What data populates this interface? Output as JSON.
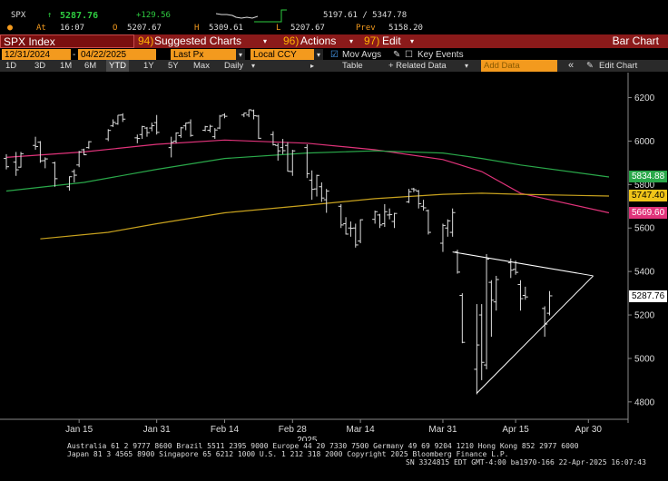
{
  "quote": {
    "ticker": "SPX",
    "arrow": "↑",
    "last": "5287.76",
    "change": "+129.56",
    "at_label": "At",
    "time": "16:07",
    "open_label": "O",
    "open": "5207.67",
    "high_label": "H",
    "high": "5309.61",
    "low_label": "L",
    "low": "5207.67",
    "range": "5197.61  /  5347.78",
    "prev_label": "Prev",
    "prev": "5158.20"
  },
  "title_bar": {
    "security": "SPX Index",
    "suggested_num": "94)",
    "suggested": "Suggested Charts",
    "actions_num": "96)",
    "actions": "Actions",
    "edit_num": "97)",
    "edit": "Edit",
    "chart_type": "Bar Chart"
  },
  "settings": {
    "start_date": "12/31/2024",
    "end_date": "04/22/2025",
    "price_field": "Last Px",
    "currency": "Local CCY",
    "mov_avgs": "Mov Avgs",
    "key_events": "Key Events"
  },
  "periods": {
    "items": [
      "1D",
      "3D",
      "1M",
      "6M",
      "YTD",
      "1Y",
      "5Y",
      "Max"
    ],
    "active": "YTD",
    "frequency": "Daily",
    "table": "Table",
    "related": "+ Related Data",
    "add_data": "Add Data",
    "collapse": "«",
    "edit_chart": "Edit Chart"
  },
  "colors": {
    "ma_magenta": "#e0337a",
    "ma_green": "#2aa84a",
    "ma_yellow": "#c8a21e",
    "bars": "#dddddd",
    "title_bar": "#8b1a1a",
    "field": "#f39a1e"
  },
  "price_tags": [
    {
      "label": "5834.88",
      "color": "#2aa84a",
      "text_color": "#ffffff",
      "value": 5834.88
    },
    {
      "label": "5747.40",
      "color": "#f0c419",
      "text_color": "#000000",
      "value": 5747.4
    },
    {
      "label": "5669.60",
      "color": "#e0337a",
      "text_color": "#ffffff",
      "value": 5669.6
    },
    {
      "label": "5287.76",
      "color": "#ffffff",
      "text_color": "#000000",
      "value": 5287.76
    }
  ],
  "chart_data": {
    "type": "bar",
    "subtype": "ohlc",
    "x_tick_labels": [
      "Jan 15",
      "Jan 31",
      "Feb 14",
      "Feb 28",
      "Mar 14",
      "Mar 31",
      "Apr 15",
      "Apr 30"
    ],
    "x_year_label": "2025",
    "y_ticks": [
      4800,
      5000,
      5200,
      5400,
      5600,
      5800,
      6000,
      6200
    ],
    "ylim": [
      4720,
      6290
    ],
    "grid": false,
    "legend": "none",
    "ohlc": [
      {
        "date": "2024-12-31",
        "o": 5920,
        "h": 5940,
        "l": 5870,
        "c": 5882
      },
      {
        "date": "2025-01-02",
        "o": 5903,
        "h": 5950,
        "l": 5840,
        "c": 5868
      },
      {
        "date": "2025-01-03",
        "o": 5880,
        "h": 5950,
        "l": 5878,
        "c": 5942
      },
      {
        "date": "2025-01-06",
        "o": 5980,
        "h": 6020,
        "l": 5960,
        "c": 5975
      },
      {
        "date": "2025-01-07",
        "o": 5995,
        "h": 6000,
        "l": 5900,
        "c": 5909
      },
      {
        "date": "2025-01-08",
        "o": 5910,
        "h": 5925,
        "l": 5875,
        "c": 5918
      },
      {
        "date": "2025-01-10",
        "o": 5900,
        "h": 5905,
        "l": 5790,
        "c": 5827
      },
      {
        "date": "2025-01-13",
        "o": 5790,
        "h": 5838,
        "l": 5772,
        "c": 5836
      },
      {
        "date": "2025-01-14",
        "o": 5860,
        "h": 5870,
        "l": 5810,
        "c": 5843
      },
      {
        "date": "2025-01-15",
        "o": 5890,
        "h": 5955,
        "l": 5880,
        "c": 5950
      },
      {
        "date": "2025-01-16",
        "o": 5960,
        "h": 5965,
        "l": 5935,
        "c": 5937
      },
      {
        "date": "2025-01-17",
        "o": 5970,
        "h": 6000,
        "l": 5965,
        "c": 5997
      },
      {
        "date": "2025-01-21",
        "o": 6010,
        "h": 6055,
        "l": 6000,
        "c": 6049
      },
      {
        "date": "2025-01-22",
        "o": 6070,
        "h": 6100,
        "l": 6065,
        "c": 6086
      },
      {
        "date": "2025-01-23",
        "o": 6080,
        "h": 6120,
        "l": 6075,
        "c": 6119
      },
      {
        "date": "2025-01-24",
        "o": 6120,
        "h": 6128,
        "l": 6088,
        "c": 6101
      },
      {
        "date": "2025-01-27",
        "o": 6015,
        "h": 6030,
        "l": 5990,
        "c": 6012
      },
      {
        "date": "2025-01-28",
        "o": 6030,
        "h": 6070,
        "l": 6010,
        "c": 6067
      },
      {
        "date": "2025-01-29",
        "o": 6060,
        "h": 6065,
        "l": 6020,
        "c": 6039
      },
      {
        "date": "2025-01-30",
        "o": 6060,
        "h": 6085,
        "l": 6045,
        "c": 6071
      },
      {
        "date": "2025-01-31",
        "o": 6085,
        "h": 6120,
        "l": 6030,
        "c": 6040
      },
      {
        "date": "2025-02-03",
        "o": 5970,
        "h": 6020,
        "l": 5925,
        "c": 5994
      },
      {
        "date": "2025-02-04",
        "o": 6000,
        "h": 6040,
        "l": 5990,
        "c": 6037
      },
      {
        "date": "2025-02-05",
        "o": 6025,
        "h": 6065,
        "l": 6015,
        "c": 6061
      },
      {
        "date": "2025-02-06",
        "o": 6070,
        "h": 6085,
        "l": 6050,
        "c": 6083
      },
      {
        "date": "2025-02-07",
        "o": 6085,
        "h": 6100,
        "l": 6020,
        "c": 6026
      },
      {
        "date": "2025-02-10",
        "o": 6050,
        "h": 6070,
        "l": 6045,
        "c": 6066
      },
      {
        "date": "2025-02-11",
        "o": 6050,
        "h": 6075,
        "l": 6040,
        "c": 6068
      },
      {
        "date": "2025-02-12",
        "o": 6020,
        "h": 6060,
        "l": 6010,
        "c": 6051
      },
      {
        "date": "2025-02-13",
        "o": 6060,
        "h": 6120,
        "l": 6055,
        "c": 6115
      },
      {
        "date": "2025-02-14",
        "o": 6120,
        "h": 6128,
        "l": 6105,
        "c": 6114
      },
      {
        "date": "2025-02-18",
        "o": 6120,
        "h": 6130,
        "l": 6110,
        "c": 6129
      },
      {
        "date": "2025-02-19",
        "o": 6120,
        "h": 6145,
        "l": 6110,
        "c": 6144
      },
      {
        "date": "2025-02-20",
        "o": 6140,
        "h": 6145,
        "l": 6100,
        "c": 6117
      },
      {
        "date": "2025-02-21",
        "o": 6115,
        "h": 6120,
        "l": 6010,
        "c": 6013
      },
      {
        "date": "2025-02-24",
        "o": 6030,
        "h": 6045,
        "l": 5980,
        "c": 5983
      },
      {
        "date": "2025-02-25",
        "o": 5980,
        "h": 5990,
        "l": 5910,
        "c": 5955
      },
      {
        "date": "2025-02-26",
        "o": 5970,
        "h": 6010,
        "l": 5940,
        "c": 5956
      },
      {
        "date": "2025-02-27",
        "o": 5980,
        "h": 5995,
        "l": 5860,
        "c": 5861
      },
      {
        "date": "2025-02-28",
        "o": 5860,
        "h": 5960,
        "l": 5840,
        "c": 5955
      },
      {
        "date": "2025-03-03",
        "o": 5970,
        "h": 5985,
        "l": 5830,
        "c": 5850
      },
      {
        "date": "2025-03-04",
        "o": 5820,
        "h": 5865,
        "l": 5730,
        "c": 5778
      },
      {
        "date": "2025-03-05",
        "o": 5780,
        "h": 5845,
        "l": 5745,
        "c": 5842
      },
      {
        "date": "2025-03-06",
        "o": 5790,
        "h": 5810,
        "l": 5720,
        "c": 5738
      },
      {
        "date": "2025-03-07",
        "o": 5730,
        "h": 5780,
        "l": 5670,
        "c": 5770
      },
      {
        "date": "2025-03-10",
        "o": 5700,
        "h": 5710,
        "l": 5600,
        "c": 5614
      },
      {
        "date": "2025-03-11",
        "o": 5620,
        "h": 5650,
        "l": 5570,
        "c": 5572
      },
      {
        "date": "2025-03-12",
        "o": 5600,
        "h": 5630,
        "l": 5560,
        "c": 5599
      },
      {
        "date": "2025-03-13",
        "o": 5600,
        "h": 5620,
        "l": 5510,
        "c": 5522
      },
      {
        "date": "2025-03-14",
        "o": 5540,
        "h": 5640,
        "l": 5530,
        "c": 5638
      },
      {
        "date": "2025-03-17",
        "o": 5640,
        "h": 5680,
        "l": 5620,
        "c": 5675
      },
      {
        "date": "2025-03-18",
        "o": 5660,
        "h": 5665,
        "l": 5600,
        "c": 5614
      },
      {
        "date": "2025-03-19",
        "o": 5620,
        "h": 5710,
        "l": 5605,
        "c": 5675
      },
      {
        "date": "2025-03-20",
        "o": 5660,
        "h": 5690,
        "l": 5640,
        "c": 5662
      },
      {
        "date": "2025-03-21",
        "o": 5630,
        "h": 5670,
        "l": 5600,
        "c": 5667
      },
      {
        "date": "2025-03-24",
        "o": 5720,
        "h": 5780,
        "l": 5715,
        "c": 5767
      },
      {
        "date": "2025-03-25",
        "o": 5780,
        "h": 5785,
        "l": 5765,
        "c": 5776
      },
      {
        "date": "2025-03-26",
        "o": 5770,
        "h": 5775,
        "l": 5690,
        "c": 5712
      },
      {
        "date": "2025-03-27",
        "o": 5700,
        "h": 5730,
        "l": 5680,
        "c": 5693
      },
      {
        "date": "2025-03-28",
        "o": 5680,
        "h": 5685,
        "l": 5570,
        "c": 5580
      },
      {
        "date": "2025-03-31",
        "o": 5530,
        "h": 5620,
        "l": 5490,
        "c": 5612
      },
      {
        "date": "2025-04-01",
        "o": 5600,
        "h": 5640,
        "l": 5560,
        "c": 5633
      },
      {
        "date": "2025-04-02",
        "o": 5580,
        "h": 5690,
        "l": 5560,
        "c": 5671
      },
      {
        "date": "2025-04-03",
        "o": 5490,
        "h": 5500,
        "l": 5390,
        "c": 5397
      },
      {
        "date": "2025-04-04",
        "o": 5290,
        "h": 5300,
        "l": 5070,
        "c": 5074
      },
      {
        "date": "2025-04-07",
        "o": 4950,
        "h": 5250,
        "l": 4835,
        "c": 5062
      },
      {
        "date": "2025-04-08",
        "o": 5200,
        "h": 5250,
        "l": 4900,
        "c": 4982
      },
      {
        "date": "2025-04-09",
        "o": 4970,
        "h": 5480,
        "l": 4950,
        "c": 5457
      },
      {
        "date": "2025-04-10",
        "o": 5350,
        "h": 5360,
        "l": 5100,
        "c": 5268
      },
      {
        "date": "2025-04-11",
        "o": 5260,
        "h": 5380,
        "l": 5220,
        "c": 5363
      },
      {
        "date": "2025-04-14",
        "o": 5440,
        "h": 5460,
        "l": 5370,
        "c": 5406
      },
      {
        "date": "2025-04-15",
        "o": 5410,
        "h": 5450,
        "l": 5385,
        "c": 5396
      },
      {
        "date": "2025-04-16",
        "o": 5340,
        "h": 5360,
        "l": 5220,
        "c": 5275
      },
      {
        "date": "2025-04-17",
        "o": 5290,
        "h": 5330,
        "l": 5270,
        "c": 5283
      },
      {
        "date": "2025-04-21",
        "o": 5230,
        "h": 5240,
        "l": 5100,
        "c": 5158
      },
      {
        "date": "2025-04-22",
        "o": 5208,
        "h": 5310,
        "l": 5198,
        "c": 5288
      }
    ],
    "moving_averages": [
      {
        "color": "magenta",
        "last": 5669.6,
        "points": [
          [
            0,
            5925
          ],
          [
            10,
            5950
          ],
          [
            20,
            5985
          ],
          [
            30,
            6005
          ],
          [
            40,
            5990
          ],
          [
            50,
            5960
          ],
          [
            60,
            5915
          ],
          [
            66,
            5860
          ],
          [
            72,
            5760
          ],
          [
            79,
            5670
          ]
        ]
      },
      {
        "color": "green",
        "last": 5834.88,
        "points": [
          [
            0,
            5770
          ],
          [
            10,
            5810
          ],
          [
            20,
            5870
          ],
          [
            30,
            5920
          ],
          [
            40,
            5945
          ],
          [
            50,
            5955
          ],
          [
            60,
            5945
          ],
          [
            66,
            5920
          ],
          [
            72,
            5890
          ],
          [
            79,
            5835
          ]
        ]
      },
      {
        "color": "yellow",
        "last": 5747.4,
        "points": [
          [
            4,
            5550
          ],
          [
            12,
            5580
          ],
          [
            20,
            5620
          ],
          [
            30,
            5670
          ],
          [
            40,
            5705
          ],
          [
            50,
            5735
          ],
          [
            60,
            5755
          ],
          [
            66,
            5760
          ],
          [
            72,
            5755
          ],
          [
            79,
            5747
          ]
        ]
      }
    ],
    "trendlines": [
      {
        "from": [
          "2025-04-02",
          5490
        ],
        "to": [
          "2025-05-01",
          5380
        ]
      },
      {
        "from": [
          "2025-04-07",
          4840
        ],
        "to": [
          "2025-05-01",
          5380
        ]
      }
    ]
  },
  "footer": {
    "line1": "Australia 61 2 9777 8600 Brazil 5511 2395 9000 Europe 44 20 7330 7500 Germany 49 69 9204 1210 Hong Kong 852 2977 6000",
    "line2": "Japan 81 3 4565 8900         Singapore 65 6212 1000         U.S. 1 212 318 2000             Copyright 2025 Bloomberg Finance L.P.",
    "line3": "SN 3324815 EDT  GMT-4:00 ba1970-166 22-Apr-2025 16:07:43"
  }
}
